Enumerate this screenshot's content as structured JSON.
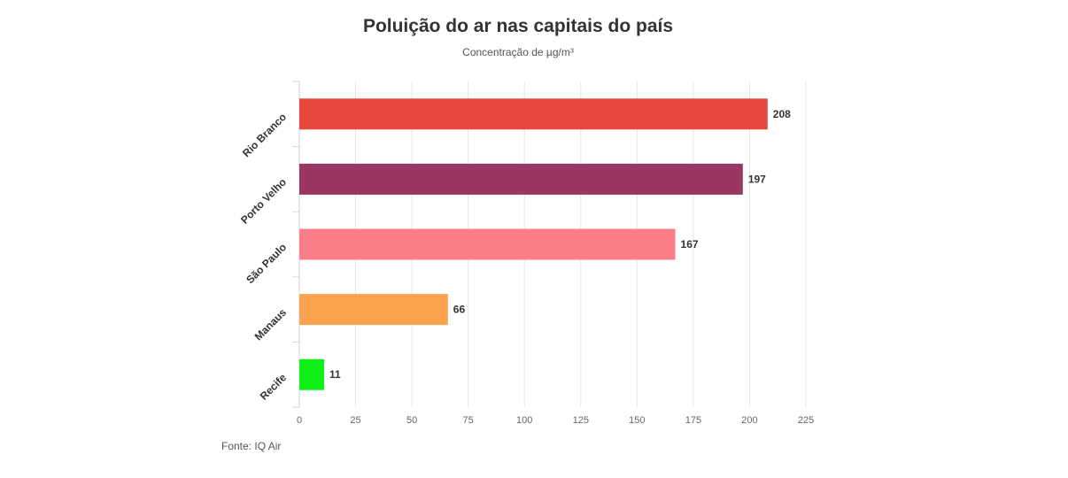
{
  "chart_data": {
    "type": "bar",
    "orientation": "horizontal",
    "title": "Poluição do ar nas capitais do país",
    "subtitle": "Concentração de µg/m³",
    "categories": [
      "Rio Branco",
      "Porto Velho",
      "São Paulo",
      "Manaus",
      "Recife"
    ],
    "values": [
      208,
      197,
      167,
      66,
      11
    ],
    "colors": [
      "#e8473f",
      "#993663",
      "#fb7d87",
      "#fca24f",
      "#10f018"
    ],
    "data_labels": [
      "208",
      "197",
      "167",
      "66",
      "11"
    ],
    "xlim": [
      0,
      225
    ],
    "xticks": [
      0,
      25,
      50,
      75,
      100,
      125,
      150,
      175,
      200,
      225
    ],
    "xtick_labels": [
      "0",
      "25",
      "50",
      "75",
      "100",
      "125",
      "150",
      "175",
      "200",
      "225"
    ],
    "grid": true,
    "source": "Fonte: IQ Air"
  }
}
